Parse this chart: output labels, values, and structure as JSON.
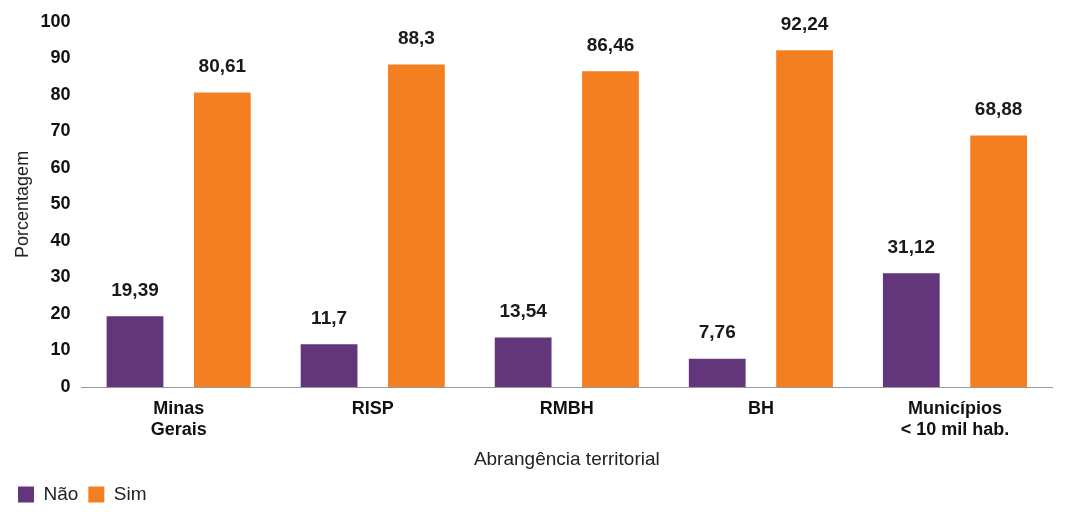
{
  "chart_data": {
    "type": "bar",
    "xlabel": "Abrangência territorial",
    "ylabel": "Porcentagem",
    "categories": [
      "Minas\nGerais",
      "RISP",
      "RMBH",
      "BH",
      "Municípios\n< 10 mil hab."
    ],
    "series": [
      {
        "name": "Não",
        "color": "#63357a",
        "values": [
          19.39,
          11.7,
          13.54,
          7.76,
          31.12
        ],
        "value_labels": [
          "19,39",
          "11,7",
          "13,54",
          "7,76",
          "31,12"
        ]
      },
      {
        "name": "Sim",
        "color": "#f47f20",
        "values": [
          80.61,
          88.3,
          86.46,
          92.24,
          68.88
        ],
        "value_labels": [
          "80,61",
          "88,3",
          "86,46",
          "92,24",
          "68,88"
        ]
      }
    ],
    "ylim": [
      0,
      100
    ],
    "yticks": [
      0,
      10,
      20,
      30,
      40,
      50,
      60,
      70,
      80,
      90,
      100
    ],
    "grid": false,
    "legend": "bottom left"
  }
}
